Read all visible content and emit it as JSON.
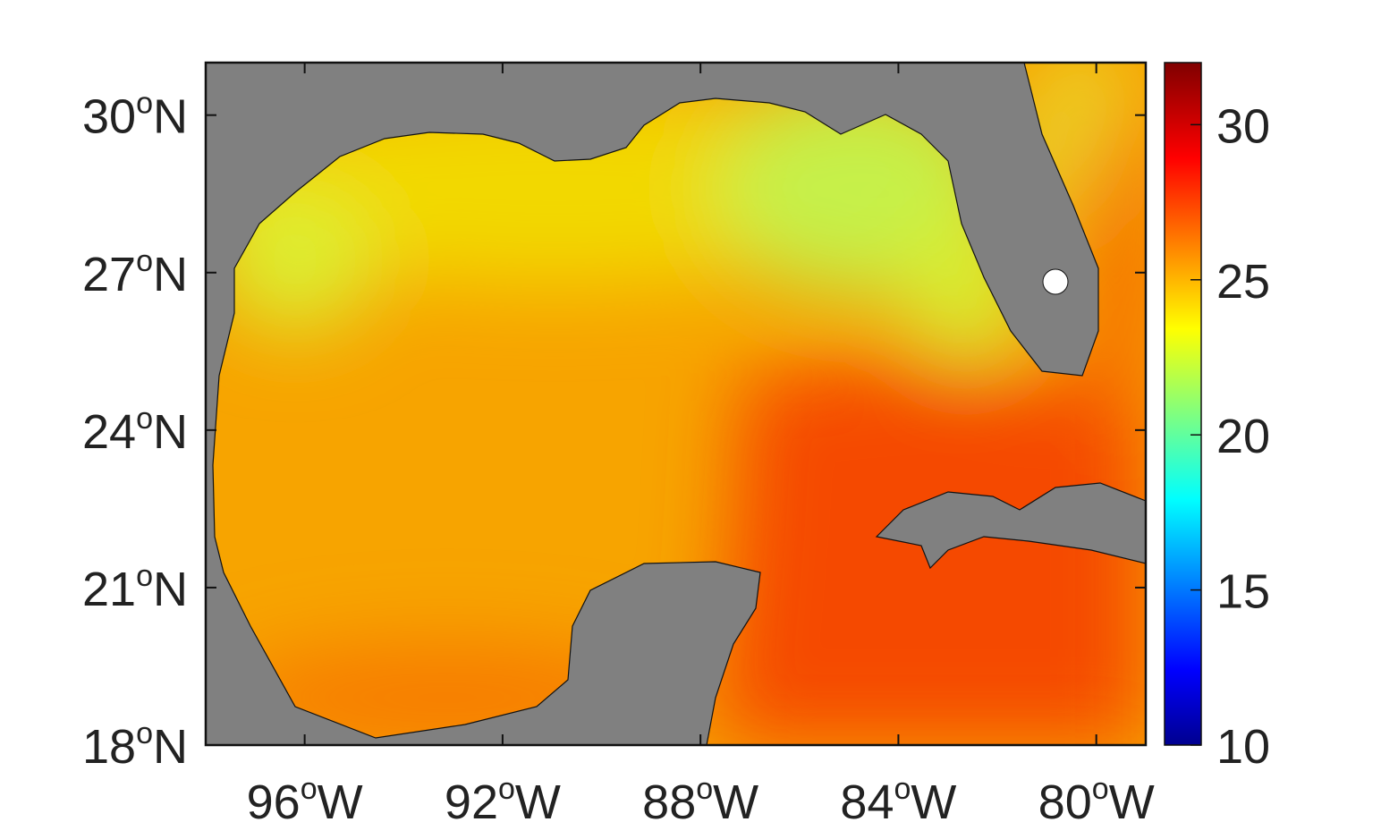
{
  "map": {
    "region_extent": {
      "lon": [
        -98,
        -79
      ],
      "lat": [
        18,
        31
      ]
    },
    "lat_ticks": [
      {
        "value": 30,
        "label": "30",
        "sup": "o",
        "hemi": "N"
      },
      {
        "value": 27,
        "label": "27",
        "sup": "o",
        "hemi": "N"
      },
      {
        "value": 24,
        "label": "24",
        "sup": "o",
        "hemi": "N"
      },
      {
        "value": 21,
        "label": "21",
        "sup": "o",
        "hemi": "N"
      },
      {
        "value": 18,
        "label": "18",
        "sup": "o",
        "hemi": "N"
      }
    ],
    "lon_ticks": [
      {
        "value": -96,
        "label": "96",
        "sup": "o",
        "hemi": "W"
      },
      {
        "value": -92,
        "label": "92",
        "sup": "o",
        "hemi": "W"
      },
      {
        "value": -88,
        "label": "88",
        "sup": "o",
        "hemi": "W"
      },
      {
        "value": -84,
        "label": "84",
        "sup": "o",
        "hemi": "W"
      },
      {
        "value": -80,
        "label": "80",
        "sup": "o",
        "hemi": "W"
      }
    ],
    "land_color": "#808080",
    "colorbar": {
      "colormap": "jet",
      "range": [
        10,
        32
      ],
      "ticks": [
        {
          "value": 30,
          "label": "30"
        },
        {
          "value": 25,
          "label": "25"
        },
        {
          "value": 20,
          "label": "20"
        },
        {
          "value": 15,
          "label": "15"
        },
        {
          "value": 10,
          "label": "10"
        }
      ]
    }
  }
}
